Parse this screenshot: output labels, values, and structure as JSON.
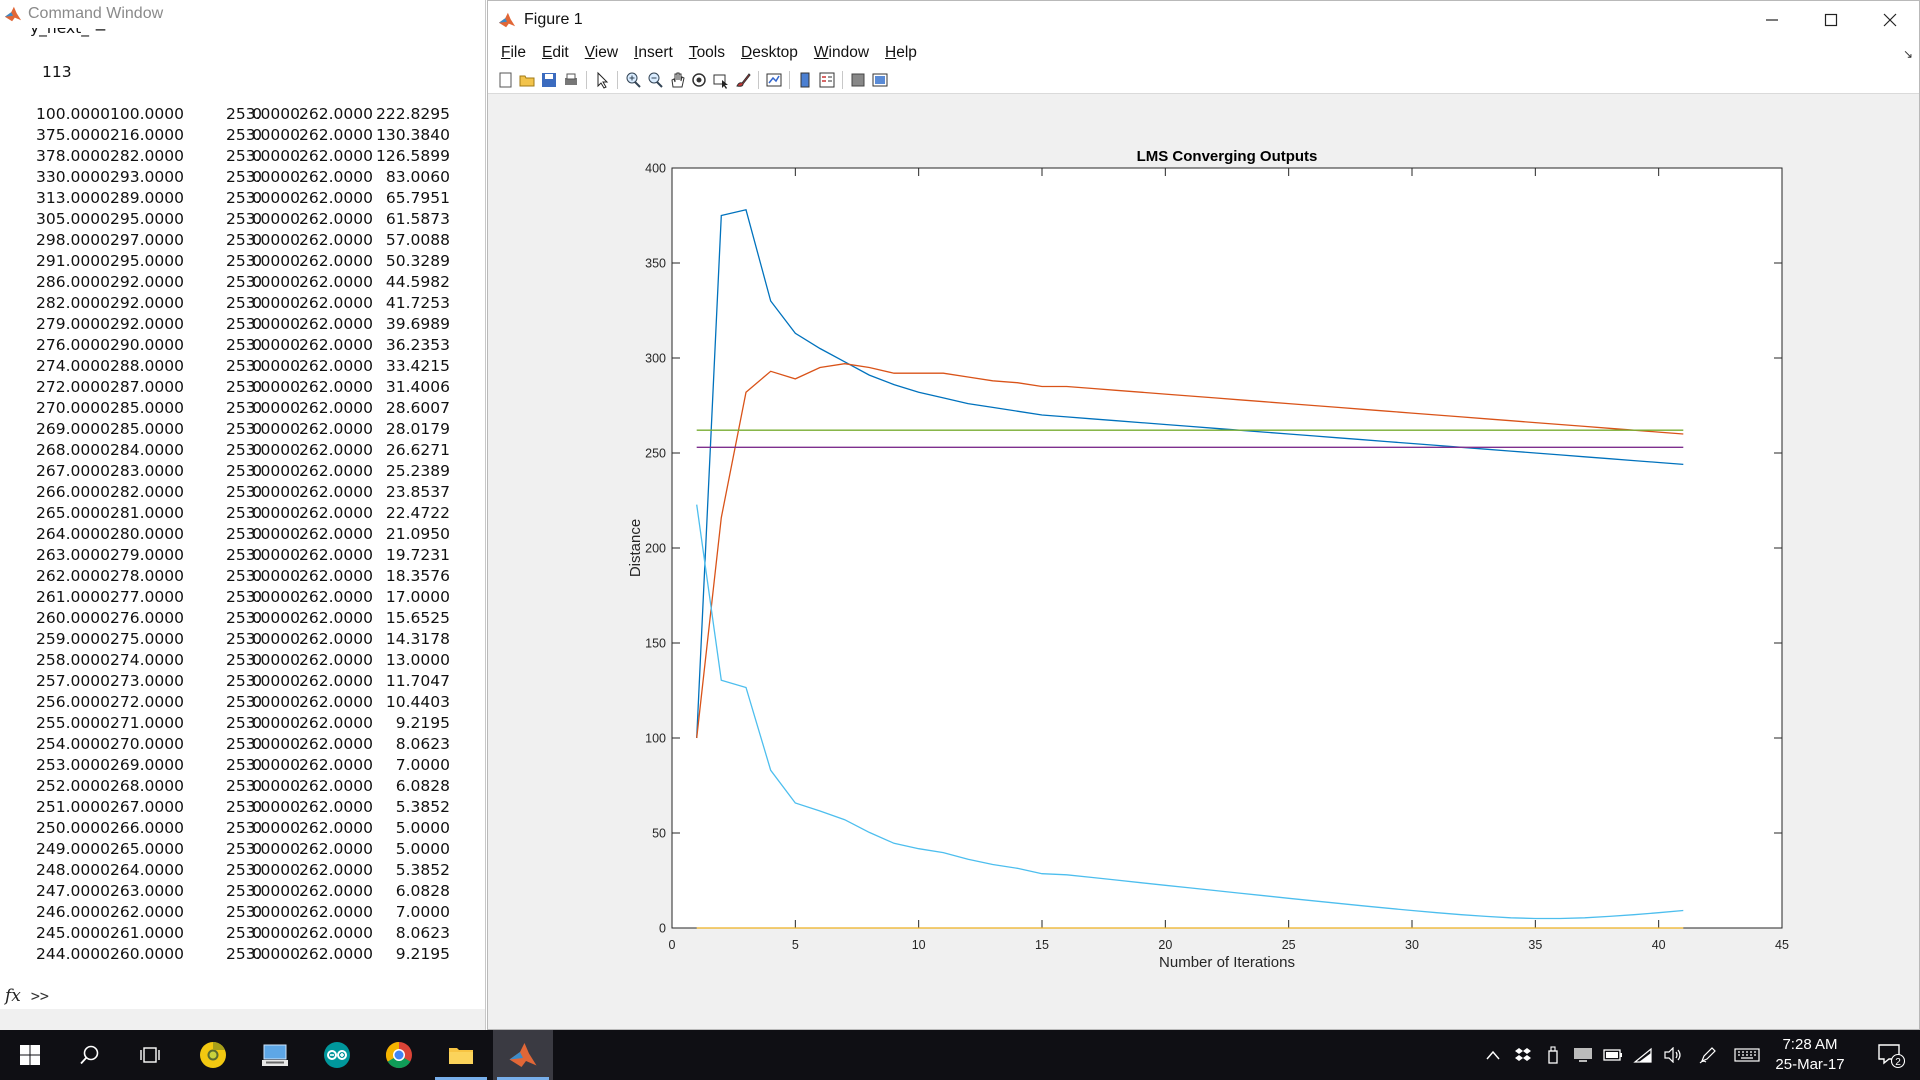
{
  "command_window": {
    "title": "Command Window",
    "variable_line": "y_next_ =",
    "value": "113",
    "rows": [
      [
        "100.0000",
        "100.0000",
        "0",
        "253.0000",
        "262.0000",
        "222.8295"
      ],
      [
        "375.0000",
        "216.0000",
        "0",
        "253.0000",
        "262.0000",
        "130.3840"
      ],
      [
        "378.0000",
        "282.0000",
        "0",
        "253.0000",
        "262.0000",
        "126.5899"
      ],
      [
        "330.0000",
        "293.0000",
        "0",
        "253.0000",
        "262.0000",
        "83.0060"
      ],
      [
        "313.0000",
        "289.0000",
        "0",
        "253.0000",
        "262.0000",
        "65.7951"
      ],
      [
        "305.0000",
        "295.0000",
        "0",
        "253.0000",
        "262.0000",
        "61.5873"
      ],
      [
        "298.0000",
        "297.0000",
        "0",
        "253.0000",
        "262.0000",
        "57.0088"
      ],
      [
        "291.0000",
        "295.0000",
        "0",
        "253.0000",
        "262.0000",
        "50.3289"
      ],
      [
        "286.0000",
        "292.0000",
        "0",
        "253.0000",
        "262.0000",
        "44.5982"
      ],
      [
        "282.0000",
        "292.0000",
        "0",
        "253.0000",
        "262.0000",
        "41.7253"
      ],
      [
        "279.0000",
        "292.0000",
        "0",
        "253.0000",
        "262.0000",
        "39.6989"
      ],
      [
        "276.0000",
        "290.0000",
        "0",
        "253.0000",
        "262.0000",
        "36.2353"
      ],
      [
        "274.0000",
        "288.0000",
        "0",
        "253.0000",
        "262.0000",
        "33.4215"
      ],
      [
        "272.0000",
        "287.0000",
        "0",
        "253.0000",
        "262.0000",
        "31.4006"
      ],
      [
        "270.0000",
        "285.0000",
        "0",
        "253.0000",
        "262.0000",
        "28.6007"
      ],
      [
        "269.0000",
        "285.0000",
        "0",
        "253.0000",
        "262.0000",
        "28.0179"
      ],
      [
        "268.0000",
        "284.0000",
        "0",
        "253.0000",
        "262.0000",
        "26.6271"
      ],
      [
        "267.0000",
        "283.0000",
        "0",
        "253.0000",
        "262.0000",
        "25.2389"
      ],
      [
        "266.0000",
        "282.0000",
        "0",
        "253.0000",
        "262.0000",
        "23.8537"
      ],
      [
        "265.0000",
        "281.0000",
        "0",
        "253.0000",
        "262.0000",
        "22.4722"
      ],
      [
        "264.0000",
        "280.0000",
        "0",
        "253.0000",
        "262.0000",
        "21.0950"
      ],
      [
        "263.0000",
        "279.0000",
        "0",
        "253.0000",
        "262.0000",
        "19.7231"
      ],
      [
        "262.0000",
        "278.0000",
        "0",
        "253.0000",
        "262.0000",
        "18.3576"
      ],
      [
        "261.0000",
        "277.0000",
        "0",
        "253.0000",
        "262.0000",
        "17.0000"
      ],
      [
        "260.0000",
        "276.0000",
        "0",
        "253.0000",
        "262.0000",
        "15.6525"
      ],
      [
        "259.0000",
        "275.0000",
        "0",
        "253.0000",
        "262.0000",
        "14.3178"
      ],
      [
        "258.0000",
        "274.0000",
        "0",
        "253.0000",
        "262.0000",
        "13.0000"
      ],
      [
        "257.0000",
        "273.0000",
        "0",
        "253.0000",
        "262.0000",
        "11.7047"
      ],
      [
        "256.0000",
        "272.0000",
        "0",
        "253.0000",
        "262.0000",
        "10.4403"
      ],
      [
        "255.0000",
        "271.0000",
        "0",
        "253.0000",
        "262.0000",
        "9.2195"
      ],
      [
        "254.0000",
        "270.0000",
        "0",
        "253.0000",
        "262.0000",
        "8.0623"
      ],
      [
        "253.0000",
        "269.0000",
        "0",
        "253.0000",
        "262.0000",
        "7.0000"
      ],
      [
        "252.0000",
        "268.0000",
        "0",
        "253.0000",
        "262.0000",
        "6.0828"
      ],
      [
        "251.0000",
        "267.0000",
        "0",
        "253.0000",
        "262.0000",
        "5.3852"
      ],
      [
        "250.0000",
        "266.0000",
        "0",
        "253.0000",
        "262.0000",
        "5.0000"
      ],
      [
        "249.0000",
        "265.0000",
        "0",
        "253.0000",
        "262.0000",
        "5.0000"
      ],
      [
        "248.0000",
        "264.0000",
        "0",
        "253.0000",
        "262.0000",
        "5.3852"
      ],
      [
        "247.0000",
        "263.0000",
        "0",
        "253.0000",
        "262.0000",
        "6.0828"
      ],
      [
        "246.0000",
        "262.0000",
        "0",
        "253.0000",
        "262.0000",
        "7.0000"
      ],
      [
        "245.0000",
        "261.0000",
        "0",
        "253.0000",
        "262.0000",
        "8.0623"
      ],
      [
        "244.0000",
        "260.0000",
        "0",
        "253.0000",
        "262.0000",
        "9.2195"
      ]
    ],
    "fx_symbol": "fx",
    "prompt": ">>"
  },
  "figure": {
    "title": "Figure 1",
    "menus": [
      "File",
      "Edit",
      "View",
      "Insert",
      "Tools",
      "Desktop",
      "Window",
      "Help"
    ],
    "toolbar_icons": [
      "new-figure-icon",
      "open-file-icon",
      "save-icon",
      "print-icon",
      "sep",
      "pointer-icon",
      "sep",
      "zoom-in-icon",
      "zoom-out-icon",
      "pan-icon",
      "rotate-icon",
      "data-cursor-icon",
      "brush-icon",
      "sep",
      "link-plot-icon",
      "sep",
      "colorbar-icon",
      "legend-icon",
      "sep",
      "hide-plot-tools-icon",
      "show-plot-tools-icon"
    ]
  },
  "chart_data": {
    "type": "line",
    "title": "LMS Converging Outputs",
    "xlabel": "Number of Iterations",
    "ylabel": "Distance",
    "xlim": [
      0,
      45
    ],
    "ylim": [
      0,
      400
    ],
    "xticks": [
      0,
      5,
      10,
      15,
      20,
      25,
      30,
      35,
      40,
      45
    ],
    "yticks": [
      0,
      50,
      100,
      150,
      200,
      250,
      300,
      350,
      400
    ],
    "grid": false,
    "x": [
      1,
      2,
      3,
      4,
      5,
      6,
      7,
      8,
      9,
      10,
      11,
      12,
      13,
      14,
      15,
      16,
      17,
      18,
      19,
      20,
      21,
      22,
      23,
      24,
      25,
      26,
      27,
      28,
      29,
      30,
      31,
      32,
      33,
      34,
      35,
      36,
      37,
      38,
      39,
      40,
      41
    ],
    "series": [
      {
        "color": "#0072bd",
        "values": [
          100,
          375,
          378,
          330,
          313,
          305,
          298,
          291,
          286,
          282,
          279,
          276,
          274,
          272,
          270,
          269,
          268,
          267,
          266,
          265,
          264,
          263,
          262,
          261,
          260,
          259,
          258,
          257,
          256,
          255,
          254,
          253,
          252,
          251,
          250,
          249,
          248,
          247,
          246,
          245,
          244
        ]
      },
      {
        "color": "#d95319",
        "values": [
          100,
          216,
          282,
          293,
          289,
          295,
          297,
          295,
          292,
          292,
          292,
          290,
          288,
          287,
          285,
          285,
          284,
          283,
          282,
          281,
          280,
          279,
          278,
          277,
          276,
          275,
          274,
          273,
          272,
          271,
          270,
          269,
          268,
          267,
          266,
          265,
          264,
          263,
          262,
          261,
          260
        ]
      },
      {
        "color": "#edb120",
        "values": [
          0,
          0,
          0,
          0,
          0,
          0,
          0,
          0,
          0,
          0,
          0,
          0,
          0,
          0,
          0,
          0,
          0,
          0,
          0,
          0,
          0,
          0,
          0,
          0,
          0,
          0,
          0,
          0,
          0,
          0,
          0,
          0,
          0,
          0,
          0,
          0,
          0,
          0,
          0,
          0,
          0
        ]
      },
      {
        "color": "#7e2f8e",
        "values": [
          253,
          253,
          253,
          253,
          253,
          253,
          253,
          253,
          253,
          253,
          253,
          253,
          253,
          253,
          253,
          253,
          253,
          253,
          253,
          253,
          253,
          253,
          253,
          253,
          253,
          253,
          253,
          253,
          253,
          253,
          253,
          253,
          253,
          253,
          253,
          253,
          253,
          253,
          253,
          253,
          253
        ]
      },
      {
        "color": "#77ac30",
        "values": [
          262,
          262,
          262,
          262,
          262,
          262,
          262,
          262,
          262,
          262,
          262,
          262,
          262,
          262,
          262,
          262,
          262,
          262,
          262,
          262,
          262,
          262,
          262,
          262,
          262,
          262,
          262,
          262,
          262,
          262,
          262,
          262,
          262,
          262,
          262,
          262,
          262,
          262,
          262,
          262,
          262
        ]
      },
      {
        "color": "#4dbeee",
        "values": [
          222.8295,
          130.384,
          126.5899,
          83.006,
          65.7951,
          61.5873,
          57.0088,
          50.3289,
          44.5982,
          41.7253,
          39.6989,
          36.2353,
          33.4215,
          31.4006,
          28.6007,
          28.0179,
          26.6271,
          25.2389,
          23.8537,
          22.4722,
          21.095,
          19.7231,
          18.3576,
          17,
          15.6525,
          14.3178,
          13,
          11.7047,
          10.4403,
          9.2195,
          8.0623,
          7,
          6.0828,
          5.3852,
          5,
          5,
          5.3852,
          6.0828,
          7,
          8.0623,
          9.2195
        ]
      }
    ]
  },
  "taskbar": {
    "apps": [
      "start-icon",
      "search-icon",
      "task-view-icon",
      "chrome-canary-icon",
      "file-explorer-icon",
      "arduino-icon",
      "chrome-icon",
      "folder-icon",
      "matlab-icon"
    ],
    "time": "7:28 AM",
    "date": "25-Mar-17",
    "notification_count": "2"
  }
}
